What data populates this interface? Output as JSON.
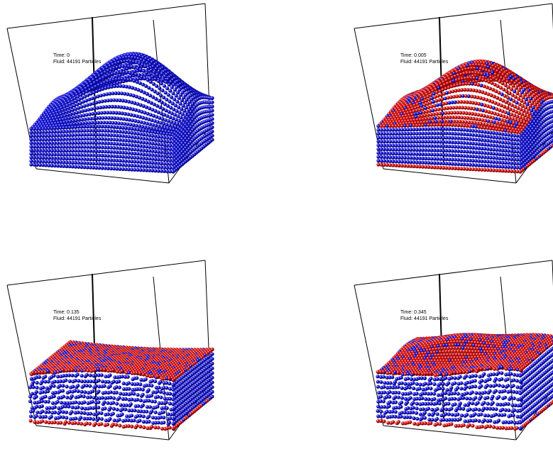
{
  "panels": [
    {
      "time": "Time: 0",
      "fluid": "Fluid: 44191 Particles",
      "state": "initial"
    },
    {
      "time": "Time: 0.005",
      "fluid": "Fluid: 44191 Particles",
      "state": "early"
    },
    {
      "time": "Time: 0.135",
      "fluid": "Fluid: 44191 Particles",
      "state": "mid"
    },
    {
      "time": "Time: 0.345",
      "fluid": "Fluid: 44191 Particles",
      "state": "late"
    }
  ],
  "colors": {
    "interior_particle": "#1f1fe8",
    "surface_particle": "#e61e1e",
    "box_edge": "#000000"
  }
}
